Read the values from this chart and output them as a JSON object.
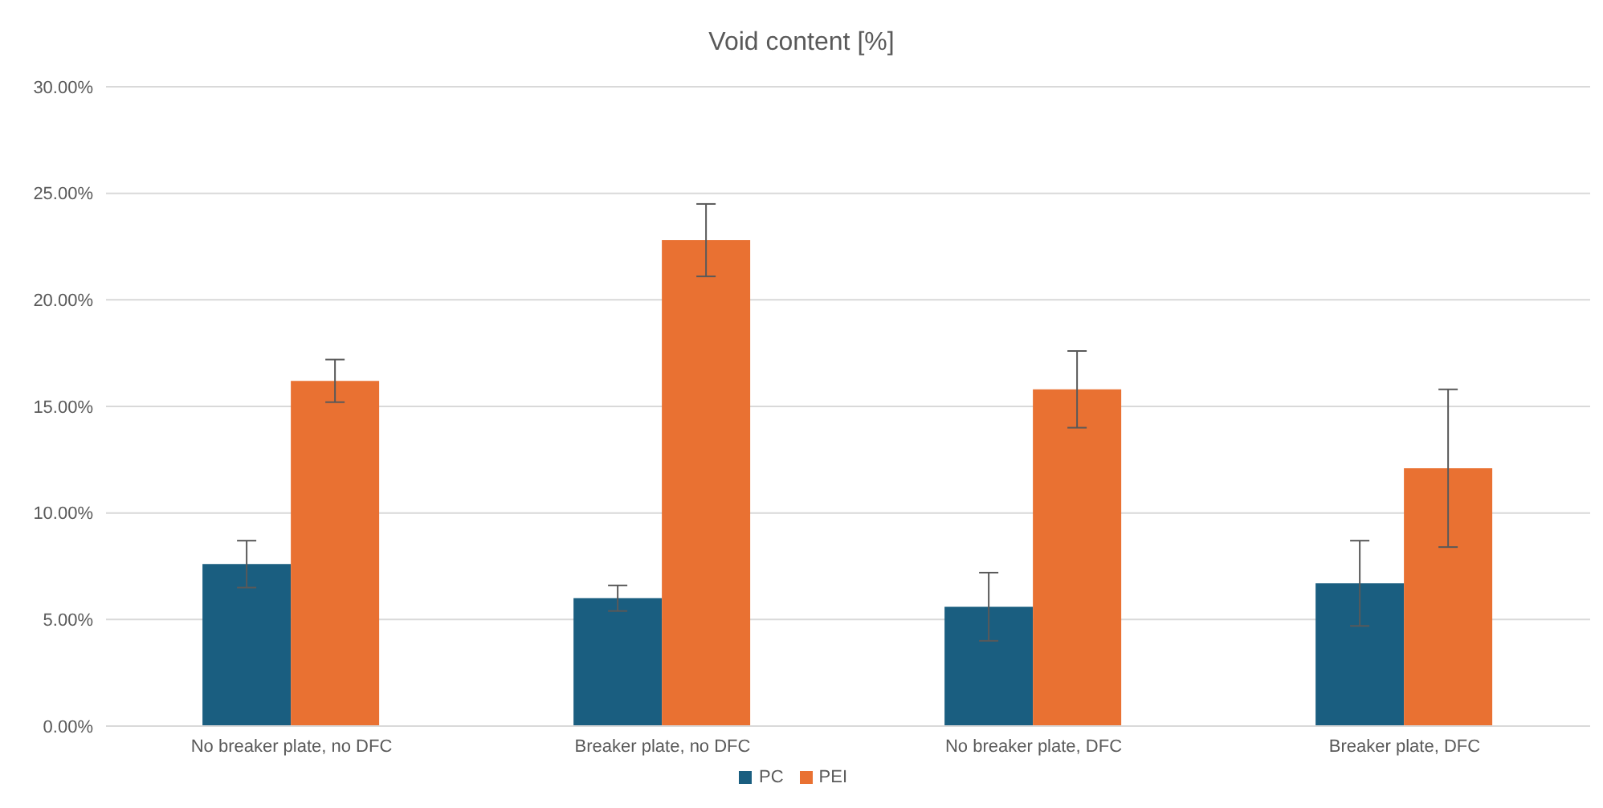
{
  "chart_data": {
    "type": "bar",
    "title": "Void content [%]",
    "categories": [
      "No breaker plate, no DFC",
      "Breaker plate, no DFC",
      "No breaker plate, DFC",
      "Breaker plate, DFC"
    ],
    "series": [
      {
        "name": "PC",
        "color": "#1a5e80",
        "values": [
          7.6,
          6.0,
          5.6,
          6.7
        ],
        "errors": [
          1.1,
          0.6,
          1.6,
          2.0
        ]
      },
      {
        "name": "PEI",
        "color": "#e97132",
        "values": [
          16.2,
          22.8,
          15.8,
          12.1
        ],
        "errors": [
          1.0,
          1.7,
          1.8,
          3.7
        ]
      }
    ],
    "ylim": [
      0,
      30
    ],
    "yticks": [
      {
        "value": 0,
        "label": "0.00%"
      },
      {
        "value": 5,
        "label": "5.00%"
      },
      {
        "value": 10,
        "label": "10.00%"
      },
      {
        "value": 15,
        "label": "15.00%"
      },
      {
        "value": 20,
        "label": "20.00%"
      },
      {
        "value": 25,
        "label": "25.00%"
      },
      {
        "value": 30,
        "label": "30.00%"
      }
    ],
    "grid": "y",
    "legend": "bottom"
  }
}
